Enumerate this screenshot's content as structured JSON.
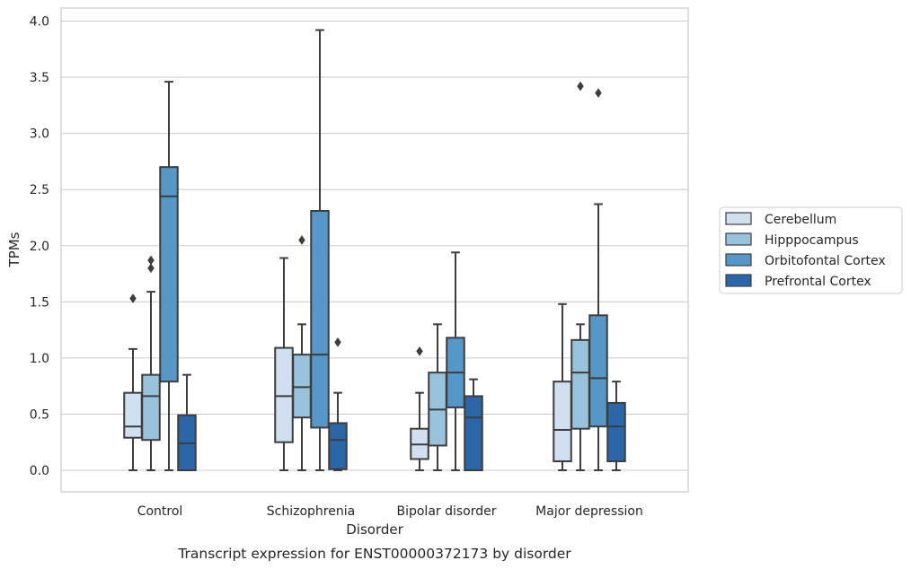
{
  "chart_data": {
    "type": "box",
    "caption": "Transcript expression for ENST00000372173 by disorder",
    "xlabel": "Disorder",
    "ylabel": "TPMs",
    "ylim": [
      -0.19,
      4.12
    ],
    "yticks": [
      0.0,
      0.5,
      1.0,
      1.5,
      2.0,
      2.5,
      3.0,
      3.5,
      4.0
    ],
    "ytick_labels": [
      "0.0",
      "0.5",
      "1.0",
      "1.5",
      "2.0",
      "2.5",
      "3.0",
      "3.5",
      "4.0"
    ],
    "grid": true,
    "legend_position": "right",
    "categories": [
      "Control",
      "Schizophrenia",
      "Bipolar disorder",
      "Major depression"
    ],
    "series": [
      {
        "name": "Cerebellum",
        "color": "#d0e0f1",
        "boxes": [
          {
            "whisker_low": 0.0,
            "q1": 0.29,
            "median": 0.39,
            "q3": 0.69,
            "whisker_high": 1.08,
            "outliers": [
              1.53
            ]
          },
          {
            "whisker_low": 0.0,
            "q1": 0.25,
            "median": 0.66,
            "q3": 1.09,
            "whisker_high": 1.89,
            "outliers": []
          },
          {
            "whisker_low": 0.0,
            "q1": 0.1,
            "median": 0.23,
            "q3": 0.37,
            "whisker_high": 0.69,
            "outliers": [
              1.06
            ]
          },
          {
            "whisker_low": 0.0,
            "q1": 0.08,
            "median": 0.36,
            "q3": 0.79,
            "whisker_high": 1.48,
            "outliers": []
          }
        ]
      },
      {
        "name": "Hipppocampus",
        "color": "#99c3dd",
        "boxes": [
          {
            "whisker_low": 0.0,
            "q1": 0.27,
            "median": 0.66,
            "q3": 0.85,
            "whisker_high": 1.59,
            "outliers": [
              1.8,
              1.87
            ]
          },
          {
            "whisker_low": 0.0,
            "q1": 0.47,
            "median": 0.74,
            "q3": 1.03,
            "whisker_high": 1.3,
            "outliers": [
              2.05
            ]
          },
          {
            "whisker_low": 0.0,
            "q1": 0.22,
            "median": 0.54,
            "q3": 0.87,
            "whisker_high": 1.3,
            "outliers": []
          },
          {
            "whisker_low": 0.0,
            "q1": 0.37,
            "median": 0.87,
            "q3": 1.16,
            "whisker_high": 1.3,
            "outliers": [
              3.42
            ]
          }
        ]
      },
      {
        "name": "Orbitofontal Cortex",
        "color": "#5597c6",
        "boxes": [
          {
            "whisker_low": 0.0,
            "q1": 0.79,
            "median": 2.44,
            "q3": 2.7,
            "whisker_high": 3.46,
            "outliers": []
          },
          {
            "whisker_low": 0.0,
            "q1": 0.38,
            "median": 1.03,
            "q3": 2.31,
            "whisker_high": 3.92,
            "outliers": []
          },
          {
            "whisker_low": 0.0,
            "q1": 0.56,
            "median": 0.87,
            "q3": 1.18,
            "whisker_high": 1.94,
            "outliers": []
          },
          {
            "whisker_low": 0.0,
            "q1": 0.39,
            "median": 0.82,
            "q3": 1.38,
            "whisker_high": 2.37,
            "outliers": [
              3.36
            ]
          }
        ]
      },
      {
        "name": "Prefrontal Cortex",
        "color": "#2b67a8",
        "boxes": [
          {
            "whisker_low": 0.0,
            "q1": 0.0,
            "median": 0.24,
            "q3": 0.49,
            "whisker_high": 0.85,
            "outliers": []
          },
          {
            "whisker_low": 0.0,
            "q1": 0.01,
            "median": 0.27,
            "q3": 0.42,
            "whisker_high": 0.69,
            "outliers": [
              1.14
            ]
          },
          {
            "whisker_low": 0.0,
            "q1": 0.0,
            "median": 0.47,
            "q3": 0.66,
            "whisker_high": 0.81,
            "outliers": []
          },
          {
            "whisker_low": 0.0,
            "q1": 0.08,
            "median": 0.39,
            "q3": 0.6,
            "whisker_high": 0.79,
            "outliers": []
          }
        ]
      }
    ]
  }
}
